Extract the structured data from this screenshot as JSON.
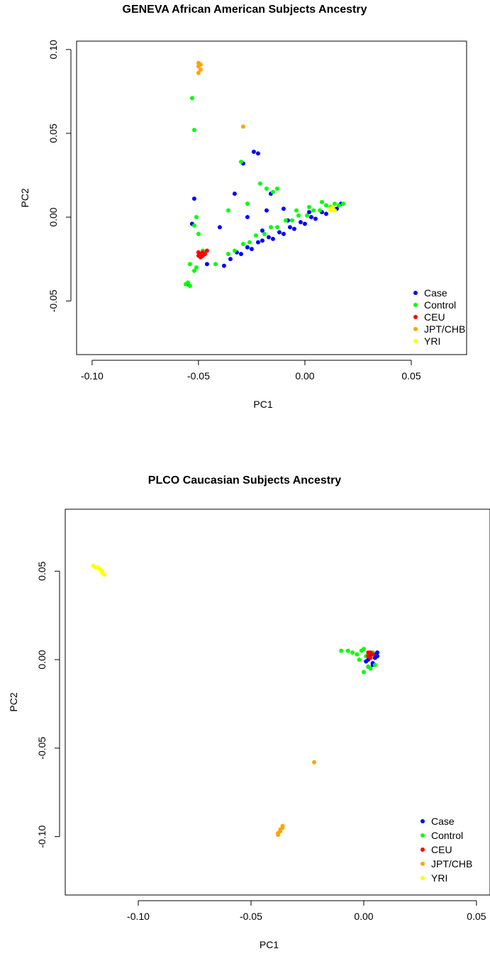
{
  "chart_data": [
    {
      "type": "scatter",
      "title": "GENEVA African American Subjects Ancestry",
      "xlabel": "PC1",
      "ylabel": "PC2",
      "xlim": [
        -0.1073,
        0.076
      ],
      "ylim": [
        -0.082,
        0.105
      ],
      "xticks": [
        {
          "value": -0.1,
          "label": "-0.10"
        },
        -0.05,
        {
          "value": 0,
          "label": "0.00"
        },
        0.05
      ],
      "yticks": [
        -0.05,
        {
          "value": 0,
          "label": "0.00"
        },
        0.05,
        {
          "value": 0.1,
          "label": "0.10"
        }
      ],
      "legend": "bottom-right",
      "series": [
        {
          "name": "Case",
          "color": "#0000ff",
          "x": [
            -0.038,
            -0.035,
            -0.032,
            -0.03,
            -0.027,
            -0.025,
            -0.022,
            -0.02,
            -0.017,
            -0.015,
            -0.012,
            -0.01,
            -0.007,
            -0.005,
            -0.002,
            0.0,
            0.003,
            0.005,
            0.008,
            0.01,
            0.013,
            0.015,
            0.017,
            -0.052,
            -0.053,
            -0.024,
            -0.022,
            -0.029,
            -0.033,
            -0.016,
            -0.027,
            -0.018,
            -0.04,
            -0.055,
            -0.046,
            -0.01,
            -0.02,
            -0.008,
            0.002
          ],
          "y": [
            -0.029,
            -0.025,
            -0.021,
            -0.022,
            -0.018,
            -0.019,
            -0.015,
            -0.014,
            -0.012,
            -0.013,
            -0.009,
            -0.01,
            -0.006,
            -0.007,
            -0.003,
            -0.004,
            0.0,
            -0.001,
            0.003,
            0.002,
            0.006,
            0.005,
            0.008,
            0.011,
            -0.004,
            0.039,
            0.038,
            0.032,
            0.014,
            0.014,
            0.0,
            0.004,
            -0.006,
            -0.04,
            -0.028,
            0.005,
            -0.008,
            -0.002,
            0.003
          ]
        },
        {
          "name": "Control",
          "color": "#00ff00",
          "x": [
            -0.053,
            -0.052,
            -0.03,
            -0.021,
            -0.018,
            -0.015,
            -0.013,
            -0.036,
            -0.027,
            -0.055,
            -0.054,
            -0.056,
            -0.054,
            -0.052,
            -0.051,
            -0.05,
            -0.051,
            -0.048,
            -0.042,
            -0.052,
            -0.036,
            -0.033,
            -0.029,
            -0.026,
            -0.023,
            -0.019,
            -0.016,
            -0.013,
            -0.009,
            -0.006,
            -0.003,
            0.001,
            0.004,
            0.007,
            0.01,
            0.012,
            0.014,
            0.016,
            0.018,
            -0.004,
            0.002,
            0.008
          ],
          "y": [
            0.071,
            0.052,
            0.033,
            0.02,
            0.017,
            0.015,
            0.017,
            0.004,
            0.008,
            -0.039,
            -0.041,
            -0.04,
            -0.028,
            -0.005,
            0.0,
            -0.01,
            -0.03,
            -0.02,
            -0.028,
            -0.032,
            -0.022,
            -0.02,
            -0.016,
            -0.015,
            -0.011,
            -0.01,
            -0.006,
            -0.006,
            -0.002,
            -0.002,
            0.001,
            0.001,
            0.004,
            0.004,
            0.007,
            0.006,
            0.008,
            0.007,
            0.008,
            0.004,
            0.006,
            0.009
          ]
        },
        {
          "name": "CEU",
          "color": "#ff0000",
          "x": [
            -0.05,
            -0.049,
            -0.048,
            -0.049,
            -0.05,
            -0.048,
            -0.047,
            -0.046
          ],
          "y": [
            -0.021,
            -0.022,
            -0.023,
            -0.024,
            -0.023,
            -0.021,
            -0.022,
            -0.02
          ]
        },
        {
          "name": "JPT/CHB",
          "color": "#ffa500",
          "x": [
            -0.05,
            -0.05,
            -0.049,
            -0.05,
            -0.049,
            -0.029
          ],
          "y": [
            0.09,
            0.092,
            0.088,
            0.086,
            0.091,
            0.054
          ]
        },
        {
          "name": "YRI",
          "color": "#ffff00",
          "x": [
            0.012,
            0.013,
            0.014,
            0.012
          ],
          "y": [
            0.005,
            0.006,
            0.004,
            0.004
          ]
        }
      ]
    },
    {
      "type": "scatter",
      "title": "PLCO Caucasian Subjects Ancestry",
      "xlabel": "PC1",
      "ylabel": "PC2",
      "xlim": [
        -0.1324,
        0.056
      ],
      "ylim": [
        -0.133,
        0.085
      ],
      "xticks": [
        {
          "value": -0.1,
          "label": "-0.10"
        },
        -0.05,
        {
          "value": 0,
          "label": "0.00"
        },
        0.05
      ],
      "yticks": [
        {
          "value": -0.1,
          "label": "-0.10"
        },
        -0.05,
        {
          "value": 0,
          "label": "0.00"
        },
        0.05
      ],
      "legend": "bottom-right",
      "series": [
        {
          "name": "Case",
          "color": "#0000ff",
          "x": [
            0.002,
            0.004,
            0.006,
            0.005,
            0.003,
            0.001,
            0.004,
            0.006,
            0.002,
            0.005
          ],
          "y": [
            -0.004,
            -0.002,
            0.004,
            0.001,
            0.003,
            -0.001,
            -0.003,
            0.002,
            0.0,
            0.003
          ]
        },
        {
          "name": "Control",
          "color": "#00ff00",
          "x": [
            -0.01,
            -0.007,
            -0.005,
            -0.003,
            -0.001,
            0.0,
            0.0,
            0.002,
            0.003,
            0.005,
            -0.002,
            0.004,
            0.001
          ],
          "y": [
            0.005,
            0.005,
            0.004,
            0.003,
            0.005,
            0.006,
            -0.007,
            -0.004,
            -0.005,
            -0.003,
            0.0,
            0.004,
            0.002
          ]
        },
        {
          "name": "CEU",
          "color": "#ff0000",
          "x": [
            0.002,
            0.003,
            0.003,
            0.004,
            0.002
          ],
          "y": [
            0.002,
            0.004,
            0.001,
            0.003,
            0.004
          ]
        },
        {
          "name": "JPT/CHB",
          "color": "#ffa500",
          "x": [
            -0.038,
            -0.037,
            -0.036,
            -0.038,
            -0.037,
            -0.036,
            -0.022
          ],
          "y": [
            -0.098,
            -0.096,
            -0.094,
            -0.099,
            -0.097,
            -0.095,
            -0.058
          ]
        },
        {
          "name": "YRI",
          "color": "#ffff00",
          "x": [
            -0.12,
            -0.118,
            -0.117,
            -0.116,
            -0.115,
            -0.119,
            -0.116
          ],
          "y": [
            0.053,
            0.052,
            0.051,
            0.05,
            0.048,
            0.052,
            0.049
          ]
        }
      ]
    }
  ]
}
